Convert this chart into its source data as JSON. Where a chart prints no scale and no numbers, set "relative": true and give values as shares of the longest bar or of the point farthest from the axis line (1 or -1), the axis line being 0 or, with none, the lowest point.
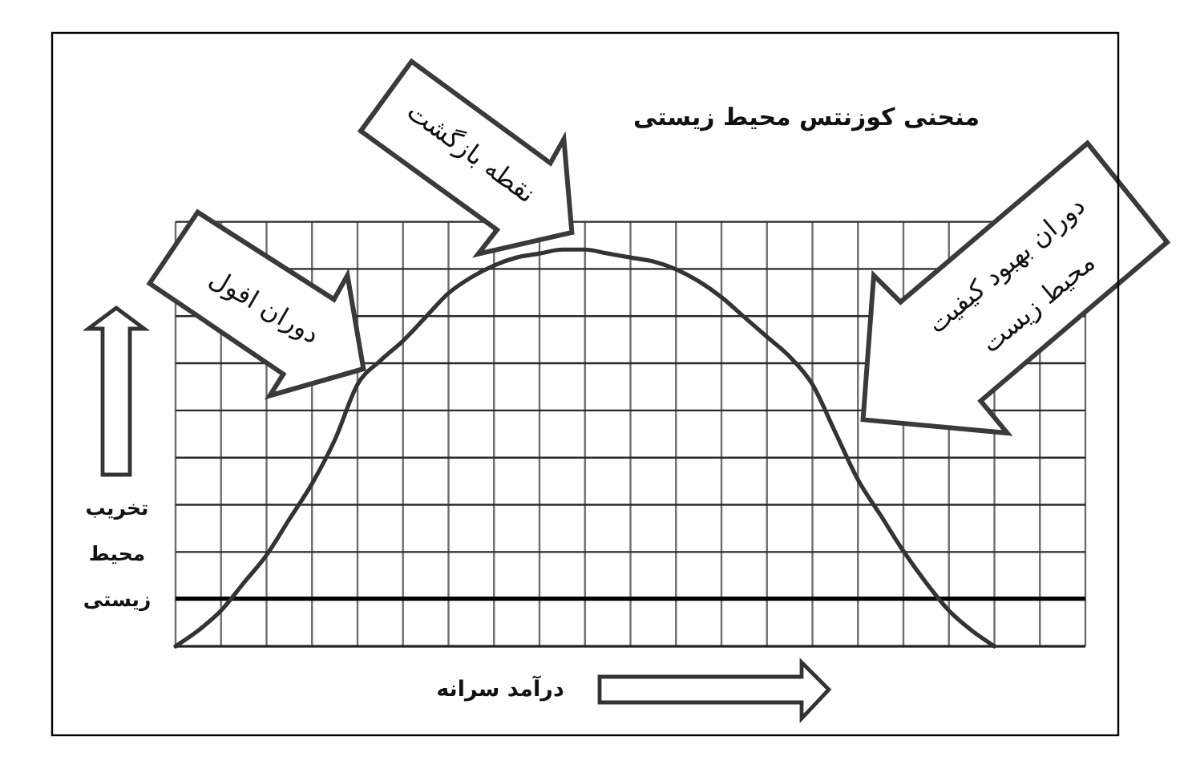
{
  "chart_data": {
    "type": "line",
    "title": "منحنی کوزنتس محیط زیستی",
    "xlabel": "درآمد سرانه",
    "ylabel": "تخریب\nمحیط\nزیستی",
    "annotations": [
      "دوران افول",
      "نقطه بازگشت",
      "دوران بهبود کیفیت\nمحیط زیست"
    ],
    "categories": [
      null,
      null,
      null,
      null,
      null,
      null,
      null,
      null,
      null,
      null,
      null,
      null,
      null,
      null,
      null,
      null,
      null,
      null,
      null,
      null,
      null,
      null,
      null,
      null,
      null,
      null,
      null,
      null,
      null,
      null,
      null,
      null,
      null,
      null,
      null,
      null,
      null,
      null,
      null,
      null,
      null
    ],
    "values": [
      0,
      0.04,
      0.09,
      0.16,
      0.23,
      0.32,
      0.41,
      0.52,
      0.66,
      0.72,
      0.77,
      0.83,
      0.89,
      0.93,
      0.96,
      0.98,
      0.99,
      1,
      1,
      0.99,
      0.98,
      0.97,
      0.95,
      0.92,
      0.88,
      0.83,
      0.78,
      0.73,
      0.66,
      0.54,
      0.42,
      0.33,
      0.24,
      0.16,
      0.09,
      0.04,
      0,
      null,
      null,
      null,
      null
    ],
    "color": "#333333",
    "relative": true,
    "grid": true,
    "ref_lines": [
      {
        "axis": "y",
        "value": 0.12,
        "color": "#000000"
      }
    ]
  }
}
